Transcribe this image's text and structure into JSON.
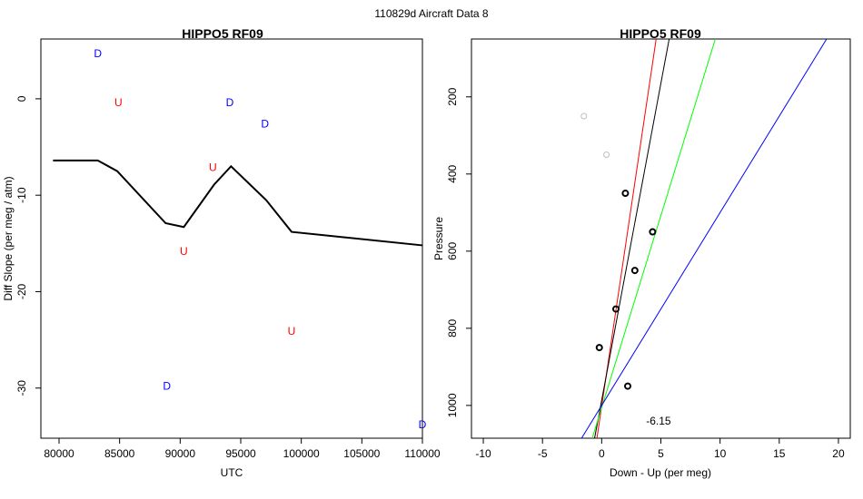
{
  "figure_title": "110829d   Aircraft Data 8",
  "chart_data": [
    {
      "type": "scatter",
      "title": "HIPPO5 RF09",
      "xlabel": "UTC",
      "ylabel": "Diff Slope (per meg / atm)",
      "xlim": [
        78500,
        110000
      ],
      "ylim": [
        -35.2,
        6.2
      ],
      "xticks": [
        80000,
        85000,
        90000,
        95000,
        100000,
        105000,
        110000
      ],
      "yticks": [
        0,
        -10,
        -20,
        -30
      ],
      "line": {
        "color": "#000000",
        "x": [
          79500,
          83200,
          84800,
          88800,
          90300,
          92800,
          94200,
          97100,
          99200,
          110000
        ],
        "y": [
          -6.4,
          -6.4,
          -7.5,
          -12.9,
          -13.3,
          -8.9,
          -7.0,
          -10.5,
          -13.8,
          -15.2
        ]
      },
      "points": [
        {
          "label": "D",
          "color": "#0000ff",
          "x": 83200,
          "y": 4.7
        },
        {
          "label": "U",
          "color": "#ff0000",
          "x": 84900,
          "y": -0.4
        },
        {
          "label": "D",
          "color": "#0000ff",
          "x": 94100,
          "y": -0.4
        },
        {
          "label": "D",
          "color": "#0000ff",
          "x": 97000,
          "y": -2.6
        },
        {
          "label": "U",
          "color": "#ff0000",
          "x": 92700,
          "y": -7.1
        },
        {
          "label": "U",
          "color": "#ff0000",
          "x": 90300,
          "y": -15.8
        },
        {
          "label": "U",
          "color": "#ff0000",
          "x": 99200,
          "y": -24.1
        },
        {
          "label": "D",
          "color": "#0000ff",
          "x": 88900,
          "y": -29.8
        },
        {
          "label": "D",
          "color": "#0000ff",
          "x": 110000,
          "y": -33.8
        }
      ]
    },
    {
      "type": "scatter",
      "title": "HIPPO5 RF09",
      "xlabel": "Down - Up (per meg)",
      "ylabel": "Pressure",
      "xlim": [
        -11,
        21
      ],
      "ylim": [
        1085,
        50
      ],
      "xticks": [
        -10,
        -5,
        0,
        5,
        10,
        15,
        20
      ],
      "yticks": [
        200,
        400,
        600,
        800,
        1000
      ],
      "points": [
        {
          "x": -1.5,
          "y": 250,
          "color": "#bebebe"
        },
        {
          "x": 0.4,
          "y": 350,
          "color": "#bebebe"
        },
        {
          "x": 2.0,
          "y": 450,
          "color": "#000000"
        },
        {
          "x": 4.3,
          "y": 550,
          "color": "#000000"
        },
        {
          "x": 2.8,
          "y": 650,
          "color": "#000000"
        },
        {
          "x": 1.2,
          "y": 750,
          "color": "#000000"
        },
        {
          "x": -0.2,
          "y": 850,
          "color": "#000000"
        },
        {
          "x": 2.2,
          "y": 950,
          "color": "#000000"
        }
      ],
      "fit_lines": [
        {
          "color": "#ff0000",
          "x1": -0.4,
          "y1": 1085,
          "x2": 4.6,
          "y2": 50
        },
        {
          "color": "#000000",
          "x1": -0.6,
          "y1": 1085,
          "x2": 5.7,
          "y2": 50
        },
        {
          "color": "#00ff00",
          "x1": -0.8,
          "y1": 1085,
          "x2": 9.6,
          "y2": 50
        },
        {
          "color": "#0000ff",
          "x1": -1.7,
          "y1": 1085,
          "x2": 19.0,
          "y2": 50
        }
      ],
      "annotation": {
        "text": "-6.15",
        "x": 4.8,
        "y": 1040
      }
    }
  ]
}
